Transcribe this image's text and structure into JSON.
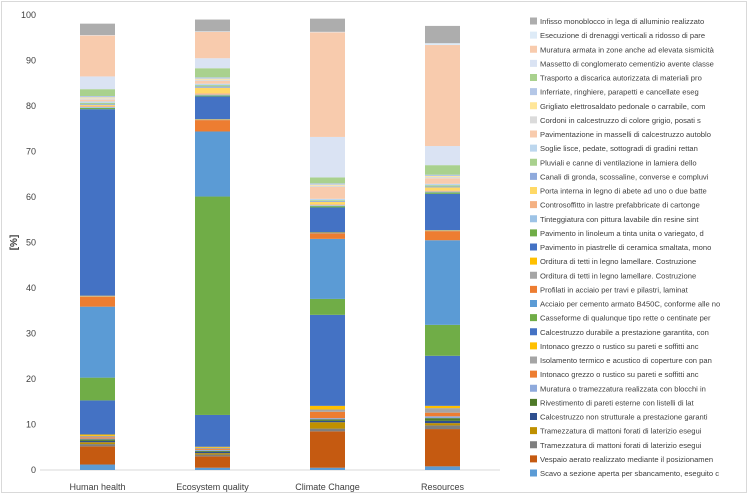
{
  "chart_data": {
    "type": "bar",
    "stacked": true,
    "ylabel": "[%]",
    "ylim": [
      0,
      100
    ],
    "yticks": [
      0,
      10,
      20,
      30,
      40,
      50,
      60,
      70,
      80,
      90,
      100
    ],
    "grid": false,
    "legend_position": "right",
    "categories": [
      "Human health",
      "Ecosystem quality",
      "Climate Change",
      "Resources"
    ],
    "series": [
      {
        "name": "Scavo a sezione aperta per sbancamento, eseguito c",
        "color": "#5b9bd5",
        "values": [
          1.2,
          0.5,
          0.5,
          0.8
        ]
      },
      {
        "name": "Vespaio aerato realizzato mediante il posizionamen",
        "color": "#c55a11",
        "values": [
          4.0,
          2.5,
          8.0,
          8.2
        ]
      },
      {
        "name": "Tramezzatura di mattoni forati di laterizio esegui",
        "color": "#7f7f7f",
        "values": [
          0.5,
          0.4,
          0.6,
          0.8
        ]
      },
      {
        "name": "Tramezzatura di mattoni forati di laterizio esegui",
        "color": "#bf9000",
        "values": [
          0.4,
          0.3,
          1.4,
          0.5
        ]
      },
      {
        "name": "Calcestruzzo non strutturale a prestazione garanti",
        "color": "#2e4f8f",
        "values": [
          0.3,
          0.3,
          0.3,
          0.5
        ]
      },
      {
        "name": "Rivestimento di pareti esterne con listelli di lat",
        "color": "#4e7a28",
        "values": [
          0.3,
          0.2,
          0.3,
          0.6
        ]
      },
      {
        "name": "Muratura o tramezzatura realizzata con blocchi in",
        "color": "#8faadc",
        "values": [
          0.2,
          0.2,
          0.3,
          0.4
        ]
      },
      {
        "name": "Intonaco grezzo o rustico su pareti e soffitti anc",
        "color": "#ed7d31",
        "values": [
          0.3,
          0.2,
          1.4,
          0.8
        ]
      },
      {
        "name": "Isolamento termico e acustico di coperture con pan",
        "color": "#a5a5a5",
        "values": [
          0.3,
          0.3,
          0.5,
          1.0
        ]
      },
      {
        "name": "Intonaco grezzo o rustico su pareti e soffitti anc",
        "color": "#ffc000",
        "values": [
          0.3,
          0.2,
          0.8,
          0.5
        ]
      },
      {
        "name": "Calcestruzzo durabile a prestazione garantita, con",
        "color": "#4472c4",
        "values": [
          7.5,
          7.0,
          20.0,
          11.0
        ]
      },
      {
        "name": "Casseforme di qualunque tipo rette o centinate per",
        "color": "#70ad47",
        "values": [
          5.0,
          48.0,
          3.5,
          6.8
        ]
      },
      {
        "name": "Acciaio per cemento armato B450C, conforme alle no",
        "color": "#5b9bd5",
        "values": [
          15.6,
          14.3,
          13.2,
          18.6
        ]
      },
      {
        "name": "Profilati in acciaio per travi e pilastri, laminat",
        "color": "#ed7d31",
        "values": [
          2.2,
          2.5,
          1.2,
          2.0
        ]
      },
      {
        "name": "Orditura di tetti in legno lamellare. Costruzione",
        "color": "#a5a5a5",
        "values": [
          0.1,
          0.1,
          0.1,
          0.1
        ]
      },
      {
        "name": "Orditura di tetti in legno lamellare. Costruzione",
        "color": "#ffc000",
        "values": [
          0.1,
          0.1,
          0.1,
          0.1
        ]
      },
      {
        "name": "Pavimento in piastrelle di ceramica smaltata, mono",
        "color": "#4472c4",
        "values": [
          41.0,
          5.0,
          5.5,
          8.0
        ]
      },
      {
        "name": "Pavimento in linoleum a tinta unita o variegato, d",
        "color": "#70ad47",
        "values": [
          0.3,
          0.2,
          0.3,
          0.3
        ]
      },
      {
        "name": "Tinteggiatura con pittura lavabile din resine sint",
        "color": "#9dc3e6",
        "values": [
          0.2,
          0.2,
          0.2,
          0.2
        ]
      },
      {
        "name": "Controsoffitto in lastre prefabbricate di cartonge",
        "color": "#f4b183",
        "values": [
          0.2,
          0.3,
          0.2,
          0.2
        ]
      },
      {
        "name": "Porta interna in legno di abete ad uno o due batte",
        "color": "#ffd966",
        "values": [
          0.2,
          1.2,
          0.5,
          0.7
        ]
      },
      {
        "name": "Canali di gronda, scossaline, converse e compluvi",
        "color": "#8faadc",
        "values": [
          0.2,
          0.3,
          0.2,
          0.2
        ]
      },
      {
        "name": "Pluviali e canne di ventilazione in lamiera dello",
        "color": "#a9d18e",
        "values": [
          0.3,
          0.3,
          0.2,
          0.3
        ]
      },
      {
        "name": "Soglie lisce, pedate, sottogradi di gradini rettan",
        "color": "#bdd7ee",
        "values": [
          0.3,
          0.3,
          0.3,
          0.3
        ]
      },
      {
        "name": "Pavimentazione in masselli di calcestruzzo autoblo",
        "color": "#f8cbad",
        "values": [
          0.4,
          0.6,
          2.6,
          1.2
        ]
      },
      {
        "name": "Cordoni in calcestruzzo di colore grigio, posati s",
        "color": "#dbdbdb",
        "values": [
          0.3,
          0.3,
          0.3,
          0.3
        ]
      },
      {
        "name": "Grigliato elettrosaldato pedonale o carrabile, com",
        "color": "#ffe699",
        "values": [
          0.2,
          0.2,
          0.2,
          0.2
        ]
      },
      {
        "name": "Inferriate, ringhiere, parapetti e cancellate eseg",
        "color": "#b4c7e7",
        "values": [
          0.3,
          0.3,
          0.3,
          0.3
        ]
      },
      {
        "name": "Trasporto a discarica autorizzata di materiali pro",
        "color": "#a9d18e",
        "values": [
          1.5,
          2.0,
          1.3,
          2.1
        ]
      },
      {
        "name": "Massetto di conglomerato cementizio avente classe",
        "color": "#dae3f3",
        "values": [
          2.8,
          2.2,
          8.9,
          4.2
        ]
      },
      {
        "name": "Muratura armata in zone anche ad elevata sismicità",
        "color": "#f8cbad",
        "values": [
          9.0,
          5.8,
          23.0,
          22.2
        ]
      },
      {
        "name": "Esecuzione di drenaggi verticali a ridosso di pare",
        "color": "#deebf7",
        "values": [
          0.1,
          0.1,
          0.1,
          0.4
        ]
      },
      {
        "name": "Infisso monoblocco in lega di alluminio realizzato",
        "color": "#adadad",
        "values": [
          2.5,
          2.6,
          2.9,
          3.8
        ]
      }
    ]
  }
}
